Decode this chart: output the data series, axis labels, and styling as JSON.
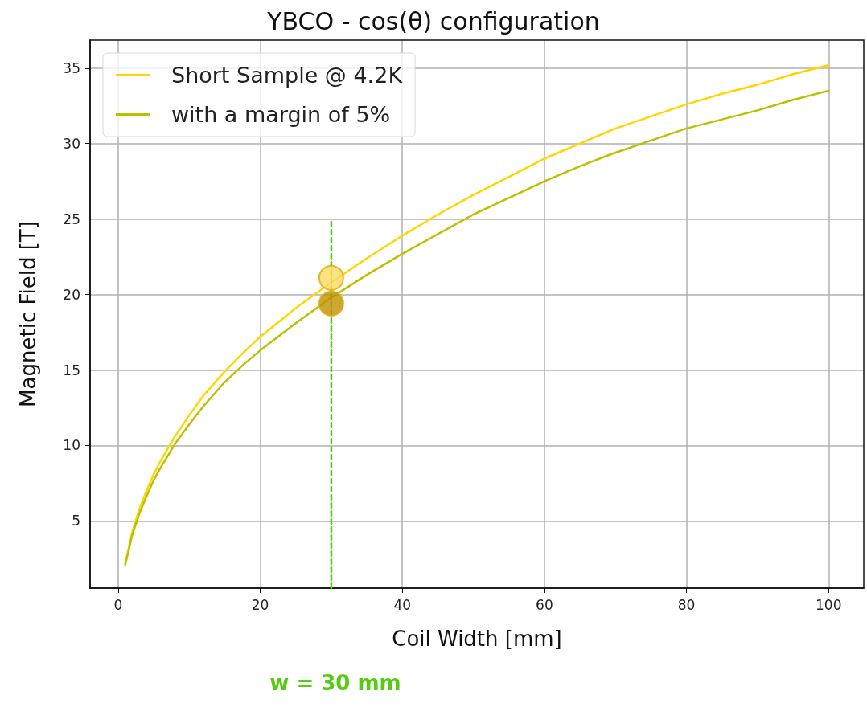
{
  "chart_data": {
    "type": "line",
    "title": "YBCO - cos(θ) configuration",
    "xlabel": "Coil Width [mm]",
    "ylabel": "Magnetic Field [T]",
    "xlim": [
      -3.95,
      104.95
    ],
    "xticks": [
      0,
      20,
      40,
      60,
      80,
      100
    ],
    "ylim": [
      0.55,
      36.85
    ],
    "yticks": [
      5,
      10,
      15,
      20,
      25,
      30,
      35
    ],
    "grid": true,
    "legend": "top left",
    "marker": "none",
    "line_style": "solid",
    "series": [
      {
        "name": "Short Sample @ 4.2K",
        "color": "#ffd700",
        "x": [
          1,
          2,
          3,
          4,
          5,
          6,
          8,
          10,
          12,
          15,
          17.5,
          20,
          25,
          30,
          35,
          40,
          45,
          50,
          55,
          60,
          65,
          70,
          75,
          80,
          85,
          90,
          95,
          100
        ],
        "values": [
          2.2,
          4.3,
          5.8,
          7.0,
          8.1,
          9.0,
          10.6,
          12.0,
          13.3,
          14.9,
          16.1,
          17.2,
          19.1,
          20.8,
          22.4,
          23.9,
          25.3,
          26.6,
          27.8,
          29.0,
          30.0,
          31.0,
          31.8,
          32.6,
          33.3,
          33.9,
          34.6,
          35.2
        ]
      },
      {
        "name": "with a margin of 5%",
        "color": "#bfbf00",
        "x": [
          1,
          2,
          3,
          4,
          5,
          6,
          8,
          10,
          12,
          15,
          17.5,
          20,
          25,
          30,
          35,
          40,
          45,
          50,
          55,
          60,
          65,
          70,
          75,
          80,
          85,
          90,
          95,
          100
        ],
        "values": [
          2.1,
          4.1,
          5.5,
          6.65,
          7.7,
          8.55,
          10.1,
          11.4,
          12.6,
          14.2,
          15.3,
          16.3,
          18.1,
          19.8,
          21.3,
          22.7,
          24.0,
          25.3,
          26.4,
          27.5,
          28.5,
          29.4,
          30.2,
          31.0,
          31.6,
          32.2,
          32.9,
          33.5
        ]
      },
      {
        "type": "line",
        "color": "#55cc11",
        "line_style": "dashed",
        "x": [
          30,
          30
        ],
        "values": [
          0.55,
          25
        ]
      },
      {
        "type": "scatter",
        "color": "#ffd966",
        "marker": "circle",
        "x": [
          30
        ],
        "values": [
          21.1
        ]
      },
      {
        "type": "scatter",
        "color": "#c09000",
        "marker": "circle",
        "x": [
          30
        ],
        "values": [
          19.4
        ]
      }
    ],
    "annotations": [
      "w = 30 mm"
    ]
  }
}
